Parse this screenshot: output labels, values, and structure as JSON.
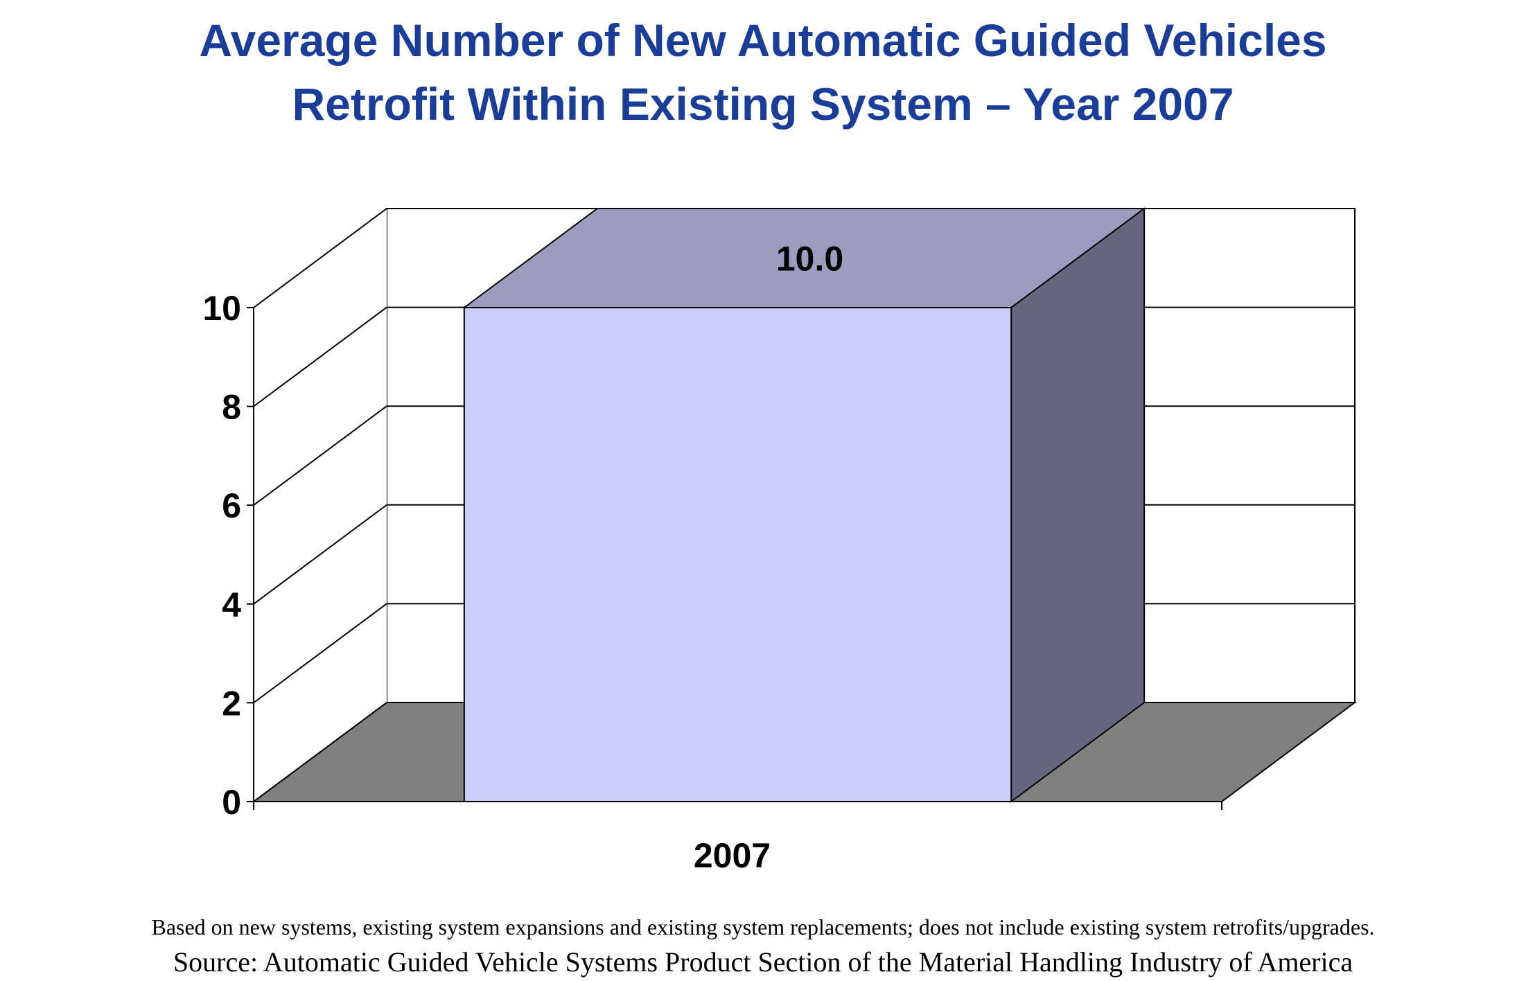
{
  "chart_data": {
    "type": "bar",
    "title_lines": [
      "Average Number of New Automatic Guided Vehicles",
      "Retrofit Within Existing System – Year 2007"
    ],
    "categories": [
      "2007"
    ],
    "values": [
      10.0
    ],
    "data_labels": [
      "10.0"
    ],
    "ylim": [
      0,
      10
    ],
    "yticks": [
      "0",
      "2",
      "4",
      "6",
      "8",
      "10"
    ],
    "grid": true,
    "style": "3d",
    "colors": {
      "title": "#1a3d99",
      "bar_front": "#ccccfa",
      "bar_top": "#9c9cc0",
      "bar_side": "#666680",
      "floor": "#808080"
    }
  },
  "footnote": "Based on new systems, existing system expansions and existing system replacements; does not include existing system retrofits/upgrades.",
  "source": "Source: Automatic Guided Vehicle Systems Product Section of the Material Handling Industry of America"
}
